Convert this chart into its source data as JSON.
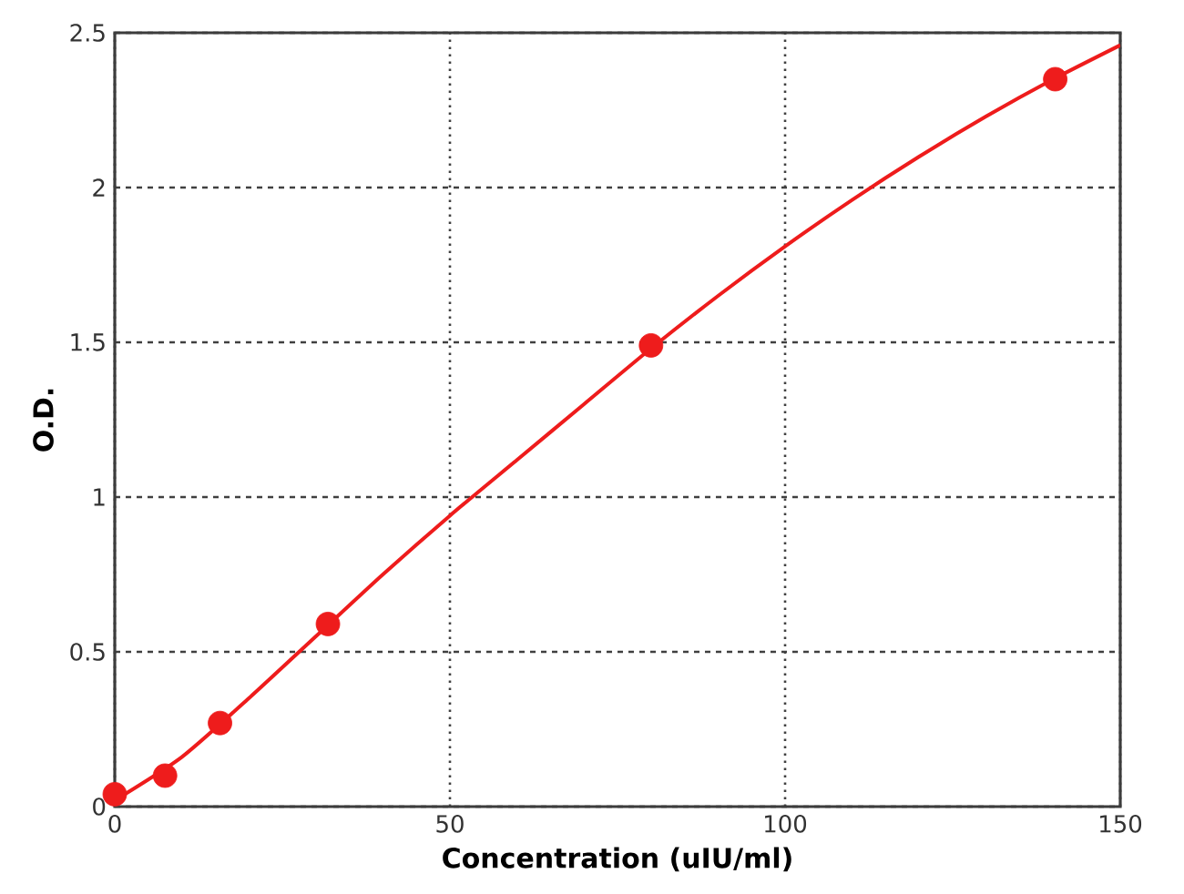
{
  "chart_data": {
    "type": "scatter",
    "xlabel": "Concentration (uIU/ml)",
    "ylabel": "O.D.",
    "xlim": [
      0,
      150
    ],
    "ylim": [
      0,
      2.5
    ],
    "xticks": [
      0,
      50,
      100,
      150
    ],
    "yticks": [
      0,
      0.5,
      1,
      1.5,
      2,
      2.5
    ],
    "grid": true,
    "series": [
      {
        "type": "line",
        "color": "#ee1c1c",
        "x": [
          0,
          10,
          20,
          30,
          40,
          50,
          60,
          70,
          80,
          90,
          100,
          110,
          120,
          130,
          140,
          150
        ],
        "values": [
          0.02,
          0.16,
          0.35,
          0.55,
          0.75,
          0.94,
          1.12,
          1.3,
          1.48,
          1.65,
          1.81,
          1.96,
          2.1,
          2.23,
          2.35,
          2.46
        ]
      },
      {
        "color": "#ee1c1c",
        "marker": "circle",
        "x": [
          0,
          7.5,
          15.7,
          31.8,
          80,
          140.3
        ],
        "values": [
          0.04,
          0.1,
          0.27,
          0.59,
          1.49,
          2.35
        ]
      }
    ]
  }
}
